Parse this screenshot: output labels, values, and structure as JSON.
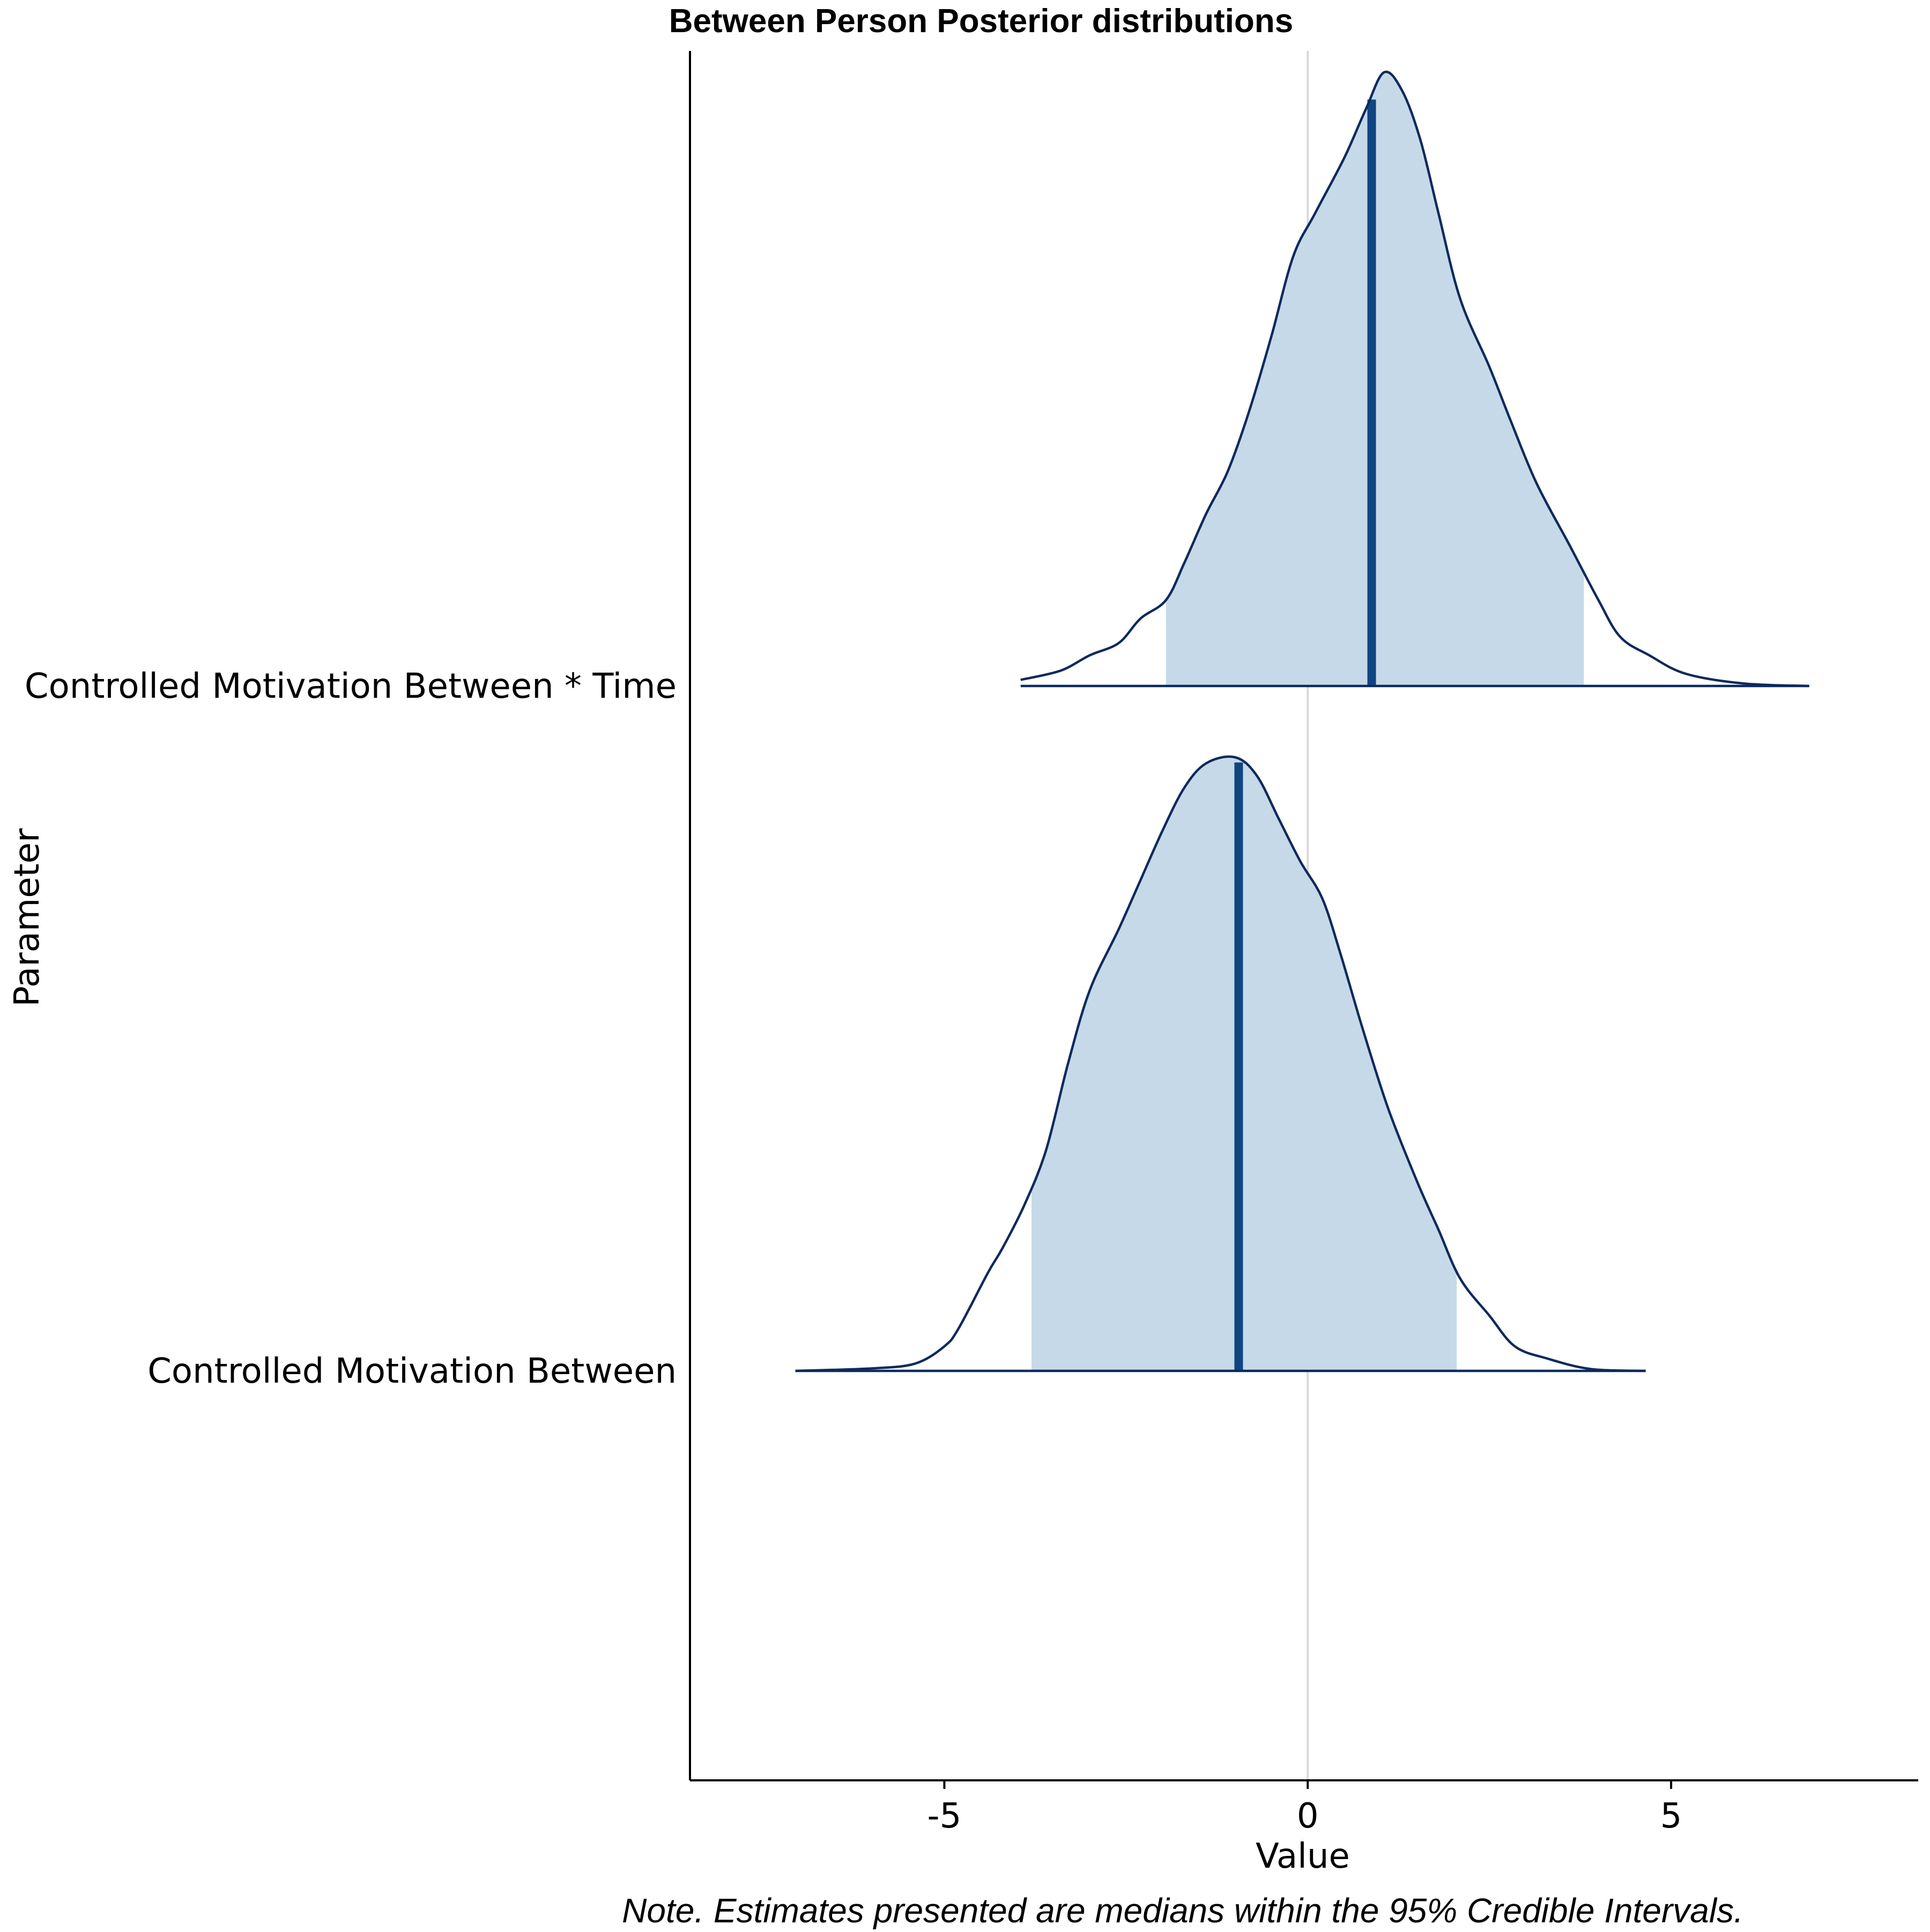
{
  "chart_data": {
    "type": "ridgeline",
    "title": "Between Person Posterior distributions",
    "xlabel": "Value",
    "ylabel": "Parameter",
    "note": "Note. Estimates presented are medians within the 95% Credible Intervals.",
    "xlim": [
      -8.5,
      8.4
    ],
    "xticks": [
      -5,
      0,
      5
    ],
    "xtick_labels": [
      "-5",
      "0",
      "5"
    ],
    "reference_line_x": 0,
    "grid": false,
    "legend": "none",
    "colors": {
      "outline": "#0d2a5c",
      "fill": "#c6d9e8",
      "median": "#0f4682",
      "reference": "#d9d9d9",
      "axis": "#000000"
    },
    "series": [
      {
        "name": "Controlled Motivation Between",
        "median": -0.95,
        "ci_lower": -3.8,
        "ci_upper": 2.05,
        "density": [
          [
            -7.05,
            0.0
          ],
          [
            -6.0,
            0.004
          ],
          [
            -5.4,
            0.012
          ],
          [
            -5.0,
            0.04
          ],
          [
            -4.8,
            0.07
          ],
          [
            -4.4,
            0.16
          ],
          [
            -4.2,
            0.2
          ],
          [
            -3.9,
            0.27
          ],
          [
            -3.6,
            0.36
          ],
          [
            -3.3,
            0.5
          ],
          [
            -3.0,
            0.62
          ],
          [
            -2.6,
            0.72
          ],
          [
            -2.3,
            0.8
          ],
          [
            -2.0,
            0.88
          ],
          [
            -1.7,
            0.95
          ],
          [
            -1.4,
            0.99
          ],
          [
            -1.0,
            1.0
          ],
          [
            -0.7,
            0.97
          ],
          [
            -0.4,
            0.9
          ],
          [
            -0.1,
            0.83
          ],
          [
            0.2,
            0.77
          ],
          [
            0.45,
            0.68
          ],
          [
            0.75,
            0.56
          ],
          [
            1.1,
            0.43
          ],
          [
            1.5,
            0.31
          ],
          [
            1.8,
            0.23
          ],
          [
            2.1,
            0.15
          ],
          [
            2.5,
            0.09
          ],
          [
            2.85,
            0.04
          ],
          [
            3.3,
            0.02
          ],
          [
            3.9,
            0.003
          ],
          [
            4.65,
            0.0
          ]
        ]
      },
      {
        "name": "Controlled Motivation Between * Time",
        "median": 0.88,
        "ci_lower": -1.95,
        "ci_upper": 3.8,
        "density": [
          [
            -3.95,
            0.01
          ],
          [
            -3.4,
            0.025
          ],
          [
            -3.0,
            0.05
          ],
          [
            -2.6,
            0.07
          ],
          [
            -2.3,
            0.11
          ],
          [
            -1.95,
            0.14
          ],
          [
            -1.7,
            0.2
          ],
          [
            -1.4,
            0.28
          ],
          [
            -1.1,
            0.35
          ],
          [
            -0.8,
            0.45
          ],
          [
            -0.5,
            0.57
          ],
          [
            -0.2,
            0.7
          ],
          [
            0.1,
            0.77
          ],
          [
            0.5,
            0.86
          ],
          [
            0.8,
            0.94
          ],
          [
            1.05,
            1.0
          ],
          [
            1.3,
            0.97
          ],
          [
            1.55,
            0.89
          ],
          [
            1.8,
            0.77
          ],
          [
            2.1,
            0.63
          ],
          [
            2.5,
            0.52
          ],
          [
            2.8,
            0.43
          ],
          [
            3.15,
            0.33
          ],
          [
            3.6,
            0.23
          ],
          [
            4.0,
            0.14
          ],
          [
            4.3,
            0.08
          ],
          [
            4.7,
            0.05
          ],
          [
            5.2,
            0.02
          ],
          [
            6.0,
            0.004
          ],
          [
            6.9,
            0.0
          ]
        ]
      }
    ]
  }
}
